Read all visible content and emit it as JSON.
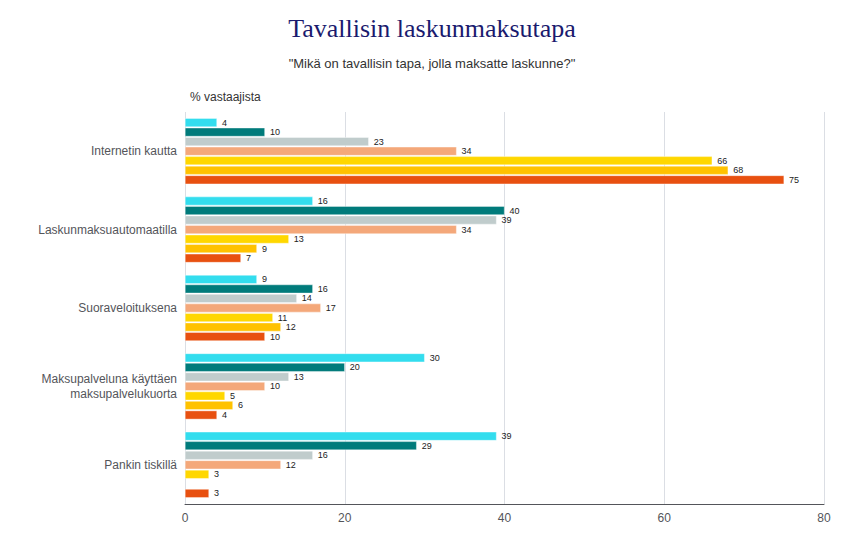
{
  "chart_data": {
    "type": "bar",
    "orientation": "horizontal",
    "title": "Tavallisin laskunmaksutapa",
    "subtitle": "\"Mikä on tavallisin tapa, jolla maksatte laskunne?\"",
    "xlabel": "% vastaajista",
    "categories": [
      "Internetin kautta",
      "Laskunmaksuautomaatilla",
      "Suoraveloituksena",
      "Maksupalveluna käyttäen\nmaksupalvelukuorta",
      "Pankin tiskillä"
    ],
    "series": [
      {
        "color": "#33DDEE",
        "values": [
          4,
          16,
          9,
          30,
          39
        ]
      },
      {
        "color": "#007B7B",
        "values": [
          10,
          40,
          16,
          20,
          29
        ]
      },
      {
        "color": "#C0CCCC",
        "values": [
          23,
          39,
          14,
          13,
          16
        ]
      },
      {
        "color": "#F4A87A",
        "values": [
          34,
          34,
          17,
          10,
          12
        ]
      },
      {
        "color": "#FFD700",
        "values": [
          66,
          13,
          11,
          5,
          3
        ]
      },
      {
        "color": "#FFC200",
        "values": [
          68,
          9,
          12,
          6,
          null
        ]
      },
      {
        "color": "#E85010",
        "values": [
          75,
          7,
          10,
          4,
          3
        ]
      }
    ],
    "xlim": [
      0,
      80
    ],
    "xticks": [
      0,
      20,
      40,
      60,
      80
    ],
    "grid": true,
    "data_labels": true
  }
}
